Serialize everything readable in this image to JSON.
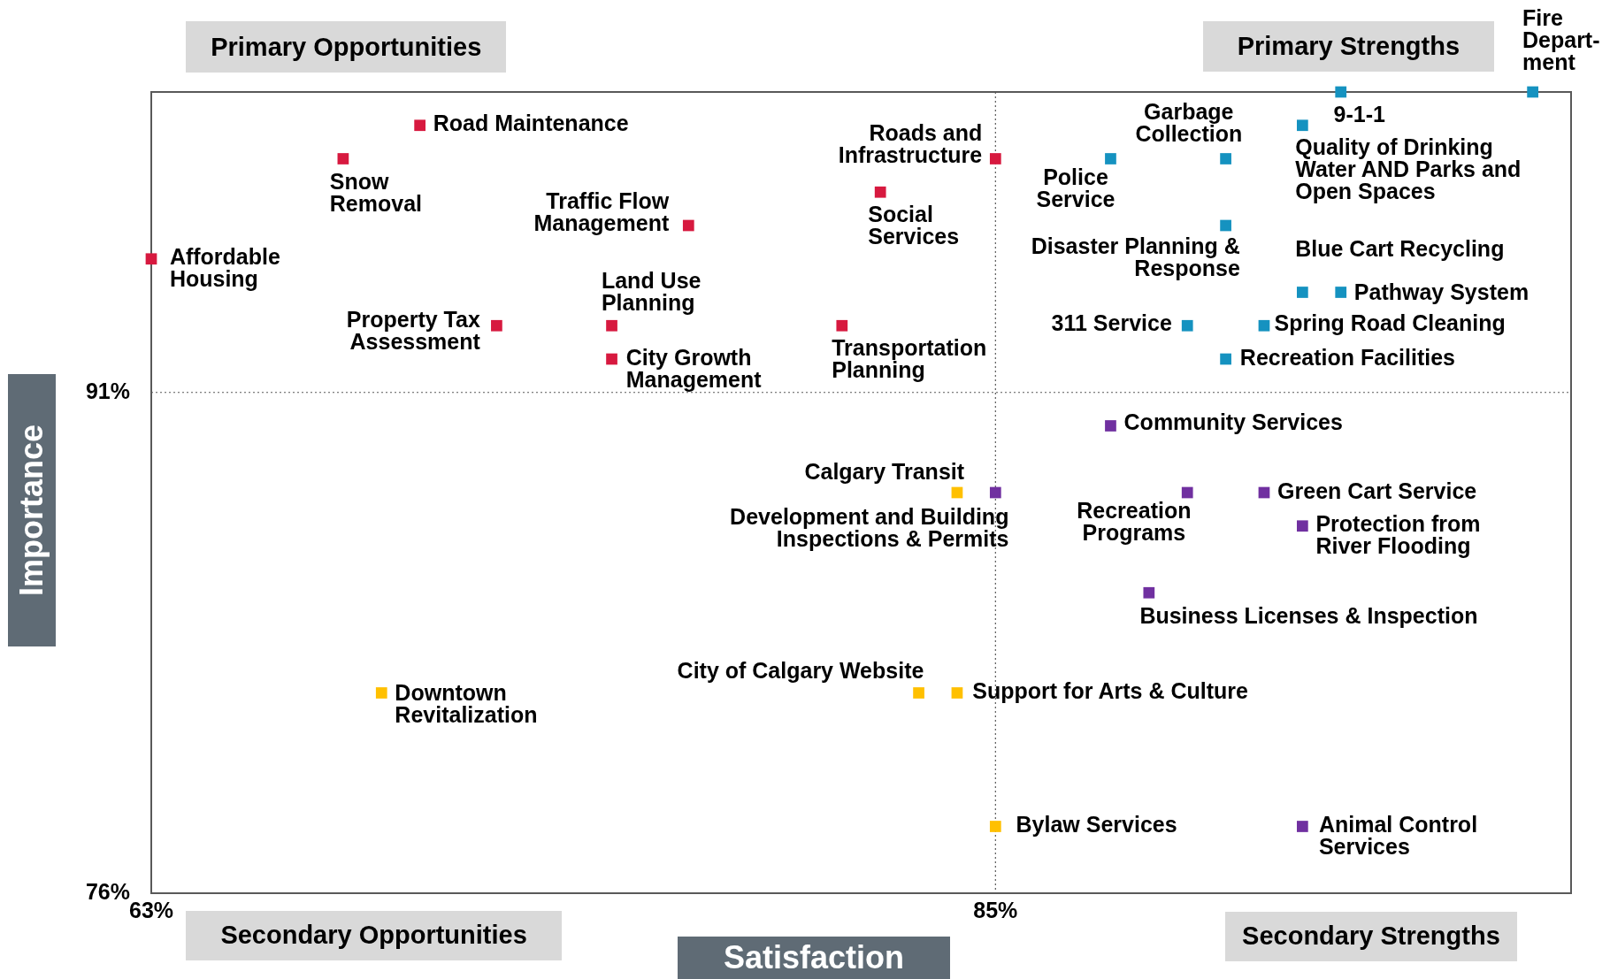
{
  "chart_data": {
    "type": "scatter",
    "xlabel": "Satisfaction",
    "ylabel": "Importance",
    "xlim": [
      63,
      100
    ],
    "ylim": [
      76,
      100
    ],
    "xticks": [
      {
        "value": 63,
        "label": "63%"
      },
      {
        "value": 85,
        "label": "85%"
      }
    ],
    "yticks": [
      {
        "value": 76,
        "label": "76%"
      },
      {
        "value": 91,
        "label": "91%"
      }
    ],
    "marker": "square",
    "grid": false,
    "legend": false,
    "ref_lines": [
      {
        "axis": "x",
        "value": 85,
        "color": "#595959",
        "line_style": "dotted"
      },
      {
        "axis": "y",
        "value": 91,
        "color": "#595959",
        "line_style": "dotted"
      }
    ],
    "series": [
      {
        "color": "#d7193f",
        "x": [
          70,
          68,
          63,
          77,
          85,
          82,
          72,
          75,
          75,
          81
        ],
        "values": [
          99,
          98,
          95,
          96,
          98,
          97,
          93,
          93,
          92,
          93
        ]
      },
      {
        "color": "#1592c0",
        "x": [
          94,
          99,
          93,
          88,
          91,
          91,
          93,
          94,
          90,
          92,
          91
        ],
        "values": [
          100,
          100,
          99,
          98,
          98,
          96,
          94,
          94,
          93,
          93,
          92
        ]
      },
      {
        "color": "#7030a0",
        "x": [
          88,
          85,
          90,
          92,
          93,
          89,
          93
        ],
        "values": [
          90,
          88,
          88,
          88,
          87,
          85,
          78
        ]
      },
      {
        "color": "#ffc000",
        "x": [
          84,
          83,
          84,
          69,
          85
        ],
        "values": [
          88,
          82,
          82,
          82,
          78
        ]
      }
    ],
    "annotations": [
      "Primary Opportunities",
      "Primary Strengths",
      "Secondary Opportunities",
      "Secondary Strengths",
      {
        "text": "Road Maintenance",
        "x": 70,
        "y": 99
      },
      {
        "text": "Snow\nRemoval",
        "x": 68,
        "y": 98
      },
      {
        "text": "Affordable\nHousing",
        "x": 63,
        "y": 95
      },
      {
        "text": "Traffic Flow\nManagement",
        "x": 77,
        "y": 96
      },
      {
        "text": "Roads and\nInfrastructure",
        "x": 85,
        "y": 98
      },
      {
        "text": "Social\nServices",
        "x": 82,
        "y": 97
      },
      {
        "text": "Property Tax\nAssessment",
        "x": 72,
        "y": 93
      },
      {
        "text": "Land Use\nPlanning",
        "x": 75,
        "y": 93
      },
      {
        "text": "City Growth\nManagement",
        "x": 75,
        "y": 92
      },
      {
        "text": "Transportation\nPlanning",
        "x": 81,
        "y": 93
      },
      {
        "text": "9-1-1",
        "x": 94,
        "y": 100
      },
      {
        "text": "Fire\nDepart-\nment",
        "x": 99,
        "y": 100
      },
      {
        "text": "Quality of Drinking\nWater AND Parks and\nOpen Spaces",
        "x": 93,
        "y": 99
      },
      {
        "text": "Police\nService",
        "x": 88,
        "y": 98
      },
      {
        "text": "Garbage\nCollection",
        "x": 91,
        "y": 98
      },
      {
        "text": "Disaster Planning &\nResponse",
        "x": 91,
        "y": 96
      },
      {
        "text": "Blue Cart Recycling",
        "x": 93,
        "y": 94
      },
      {
        "text": "Pathway System",
        "x": 94,
        "y": 94
      },
      {
        "text": "311 Service",
        "x": 90,
        "y": 93
      },
      {
        "text": "Spring Road Cleaning",
        "x": 92,
        "y": 93
      },
      {
        "text": "Recreation Facilities",
        "x": 91,
        "y": 92
      },
      {
        "text": "Community Services",
        "x": 88,
        "y": 90
      },
      {
        "text": "Development and Building\nInspections & Permits",
        "x": 85,
        "y": 88
      },
      {
        "text": "Recreation\nPrograms",
        "x": 90,
        "y": 88
      },
      {
        "text": "Green Cart Service",
        "x": 92,
        "y": 88
      },
      {
        "text": "Protection from\nRiver Flooding",
        "x": 93,
        "y": 87
      },
      {
        "text": "Business Licenses & Inspection",
        "x": 89,
        "y": 85
      },
      {
        "text": "Animal Control\nServices",
        "x": 93,
        "y": 78
      },
      {
        "text": "Calgary Transit",
        "x": 84,
        "y": 88
      },
      {
        "text": "City of Calgary Website",
        "x": 83,
        "y": 82
      },
      {
        "text": "Support for Arts & Culture",
        "x": 84,
        "y": 82
      },
      {
        "text": "Downtown\nRevitalization",
        "x": 69,
        "y": 82
      },
      {
        "text": "Bylaw Services",
        "x": 85,
        "y": 78
      }
    ]
  }
}
